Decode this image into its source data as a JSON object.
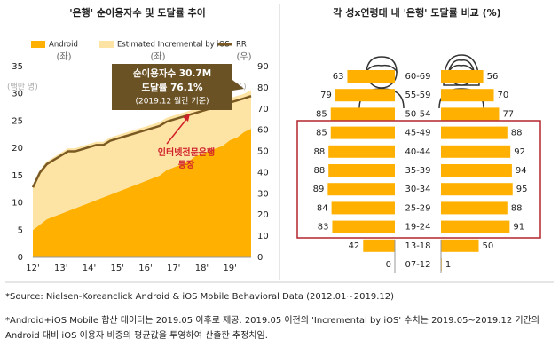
{
  "chart_data": [
    {
      "type": "stacked-area-line",
      "title": "'은행' 순이용자수 및 도달률 추이",
      "y_unit_label": "(백만 명)",
      "y2_unit_label": "(%)",
      "categories": [
        "12'",
        null,
        null,
        null,
        "13'",
        null,
        null,
        null,
        "14'",
        null,
        null,
        null,
        "15'",
        null,
        null,
        null,
        "16'",
        null,
        null,
        null,
        "17'",
        null,
        null,
        null,
        "18'",
        null,
        null,
        null,
        "19'",
        null,
        null,
        null
      ],
      "series": [
        {
          "name": "Android",
          "axis_label": "(좌)",
          "color": "#ffb000",
          "values": [
            5,
            6,
            7,
            7.5,
            8,
            8.5,
            9,
            9.5,
            10,
            10.5,
            11,
            11.5,
            12,
            12.5,
            13,
            13.5,
            14,
            14.5,
            15,
            16,
            16.5,
            17,
            17.5,
            18.5,
            19,
            19.5,
            20,
            20.5,
            21.5,
            22,
            23,
            23.6
          ]
        },
        {
          "name": "Estimated Incremental by iOS",
          "axis_label": "(좌)",
          "color": "#fde3a4",
          "values": [
            8.2,
            10,
            10.6,
            10.9,
            11.2,
            11.5,
            11,
            10.9,
            10.8,
            10.7,
            10.2,
            10.5,
            10.4,
            10.3,
            10.2,
            10.1,
            10,
            9.9,
            9.8,
            9.6,
            9.5,
            9.4,
            9.3,
            8.7,
            8.6,
            8.5,
            8.4,
            8.3,
            7.7,
            7.6,
            7,
            7.1
          ]
        },
        {
          "name": "RR",
          "axis_label": "(우)",
          "axis": "y2",
          "color": "#7a5a22",
          "values": [
            33,
            40,
            44,
            46,
            48,
            50,
            50,
            51,
            52,
            53,
            53,
            55,
            56,
            57,
            58,
            59,
            60,
            61,
            62,
            64,
            65,
            66,
            67,
            68,
            69,
            70,
            71,
            72,
            73,
            74,
            75,
            76.1
          ]
        }
      ],
      "ylim": [
        0,
        35
      ],
      "yticks": [
        0,
        5,
        10,
        15,
        20,
        25,
        30,
        35
      ],
      "y2lim": [
        0,
        90
      ],
      "y2ticks": [
        0,
        10,
        20,
        30,
        40,
        50,
        60,
        70,
        80,
        90
      ],
      "grid": false,
      "annotations": [
        "순이용자수 30.7M",
        "도달률 76.1%",
        "(2019.12 월간 기준)",
        "인터넷전문은행",
        "등장"
      ]
    },
    {
      "type": "butterfly",
      "title": "각 성x연령대 내 '은행' 도달률 비교 (%)",
      "categories": [
        "60-69",
        "55-59",
        "50-54",
        "45-49",
        "40-44",
        "35-39",
        "30-34",
        "25-29",
        "19-24",
        "13-18",
        "07-12"
      ],
      "series": [
        {
          "color": "#ffb000",
          "values": [
            63,
            79,
            85,
            85,
            88,
            88,
            89,
            84,
            83,
            42,
            0
          ]
        },
        {
          "color": "#ffb000",
          "values": [
            56,
            70,
            77,
            88,
            92,
            94,
            95,
            88,
            91,
            50,
            1
          ]
        }
      ],
      "xlim": [
        0,
        100
      ]
    }
  ],
  "notes": [
    "*Source: Nielsen-Koreanclick Android & iOS Mobile Behavioral Data (2012.01~2019.12)",
    "*Android+iOS Mobile 합산 데이터는 2019.05 이후로 제공. 2019.05 이전의 'Incremental by iOS' 수치는 2019.05~2019.12 기간의 Android 대비 iOS 이용자 비중의 평균값을 투영하여 산출한 추정치임."
  ]
}
